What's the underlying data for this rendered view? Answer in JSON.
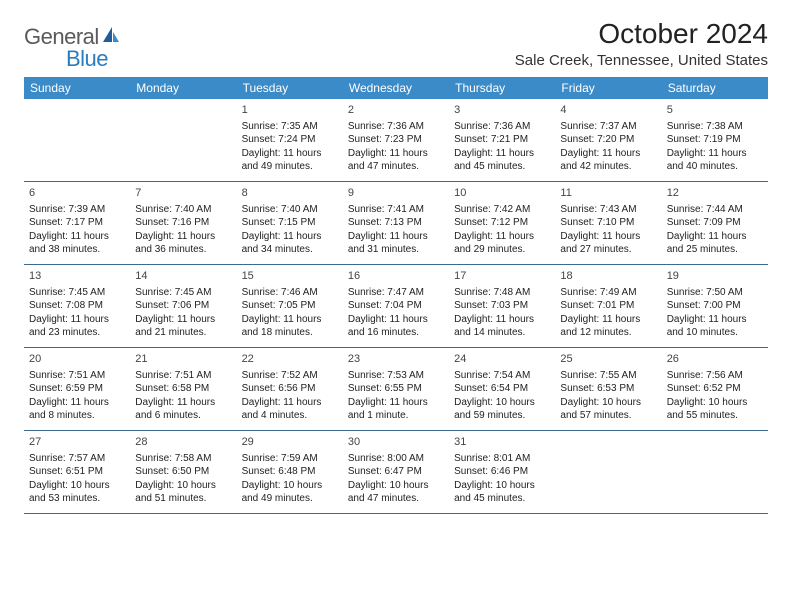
{
  "logo": {
    "part1": "General",
    "part2": "Blue"
  },
  "title": "October 2024",
  "location": "Sale Creek, Tennessee, United States",
  "colors": {
    "header_bg": "#3b8bc8",
    "header_text": "#ffffff",
    "row_divider": "#3b6a8e",
    "logo_gray": "#5a5a5a",
    "logo_blue": "#2b7cc0"
  },
  "days_of_week": [
    "Sunday",
    "Monday",
    "Tuesday",
    "Wednesday",
    "Thursday",
    "Friday",
    "Saturday"
  ],
  "weeks": [
    [
      {
        "n": "",
        "sr": "",
        "ss": "",
        "dl": ""
      },
      {
        "n": "",
        "sr": "",
        "ss": "",
        "dl": ""
      },
      {
        "n": "1",
        "sr": "Sunrise: 7:35 AM",
        "ss": "Sunset: 7:24 PM",
        "dl": "Daylight: 11 hours and 49 minutes."
      },
      {
        "n": "2",
        "sr": "Sunrise: 7:36 AM",
        "ss": "Sunset: 7:23 PM",
        "dl": "Daylight: 11 hours and 47 minutes."
      },
      {
        "n": "3",
        "sr": "Sunrise: 7:36 AM",
        "ss": "Sunset: 7:21 PM",
        "dl": "Daylight: 11 hours and 45 minutes."
      },
      {
        "n": "4",
        "sr": "Sunrise: 7:37 AM",
        "ss": "Sunset: 7:20 PM",
        "dl": "Daylight: 11 hours and 42 minutes."
      },
      {
        "n": "5",
        "sr": "Sunrise: 7:38 AM",
        "ss": "Sunset: 7:19 PM",
        "dl": "Daylight: 11 hours and 40 minutes."
      }
    ],
    [
      {
        "n": "6",
        "sr": "Sunrise: 7:39 AM",
        "ss": "Sunset: 7:17 PM",
        "dl": "Daylight: 11 hours and 38 minutes."
      },
      {
        "n": "7",
        "sr": "Sunrise: 7:40 AM",
        "ss": "Sunset: 7:16 PM",
        "dl": "Daylight: 11 hours and 36 minutes."
      },
      {
        "n": "8",
        "sr": "Sunrise: 7:40 AM",
        "ss": "Sunset: 7:15 PM",
        "dl": "Daylight: 11 hours and 34 minutes."
      },
      {
        "n": "9",
        "sr": "Sunrise: 7:41 AM",
        "ss": "Sunset: 7:13 PM",
        "dl": "Daylight: 11 hours and 31 minutes."
      },
      {
        "n": "10",
        "sr": "Sunrise: 7:42 AM",
        "ss": "Sunset: 7:12 PM",
        "dl": "Daylight: 11 hours and 29 minutes."
      },
      {
        "n": "11",
        "sr": "Sunrise: 7:43 AM",
        "ss": "Sunset: 7:10 PM",
        "dl": "Daylight: 11 hours and 27 minutes."
      },
      {
        "n": "12",
        "sr": "Sunrise: 7:44 AM",
        "ss": "Sunset: 7:09 PM",
        "dl": "Daylight: 11 hours and 25 minutes."
      }
    ],
    [
      {
        "n": "13",
        "sr": "Sunrise: 7:45 AM",
        "ss": "Sunset: 7:08 PM",
        "dl": "Daylight: 11 hours and 23 minutes."
      },
      {
        "n": "14",
        "sr": "Sunrise: 7:45 AM",
        "ss": "Sunset: 7:06 PM",
        "dl": "Daylight: 11 hours and 21 minutes."
      },
      {
        "n": "15",
        "sr": "Sunrise: 7:46 AM",
        "ss": "Sunset: 7:05 PM",
        "dl": "Daylight: 11 hours and 18 minutes."
      },
      {
        "n": "16",
        "sr": "Sunrise: 7:47 AM",
        "ss": "Sunset: 7:04 PM",
        "dl": "Daylight: 11 hours and 16 minutes."
      },
      {
        "n": "17",
        "sr": "Sunrise: 7:48 AM",
        "ss": "Sunset: 7:03 PM",
        "dl": "Daylight: 11 hours and 14 minutes."
      },
      {
        "n": "18",
        "sr": "Sunrise: 7:49 AM",
        "ss": "Sunset: 7:01 PM",
        "dl": "Daylight: 11 hours and 12 minutes."
      },
      {
        "n": "19",
        "sr": "Sunrise: 7:50 AM",
        "ss": "Sunset: 7:00 PM",
        "dl": "Daylight: 11 hours and 10 minutes."
      }
    ],
    [
      {
        "n": "20",
        "sr": "Sunrise: 7:51 AM",
        "ss": "Sunset: 6:59 PM",
        "dl": "Daylight: 11 hours and 8 minutes."
      },
      {
        "n": "21",
        "sr": "Sunrise: 7:51 AM",
        "ss": "Sunset: 6:58 PM",
        "dl": "Daylight: 11 hours and 6 minutes."
      },
      {
        "n": "22",
        "sr": "Sunrise: 7:52 AM",
        "ss": "Sunset: 6:56 PM",
        "dl": "Daylight: 11 hours and 4 minutes."
      },
      {
        "n": "23",
        "sr": "Sunrise: 7:53 AM",
        "ss": "Sunset: 6:55 PM",
        "dl": "Daylight: 11 hours and 1 minute."
      },
      {
        "n": "24",
        "sr": "Sunrise: 7:54 AM",
        "ss": "Sunset: 6:54 PM",
        "dl": "Daylight: 10 hours and 59 minutes."
      },
      {
        "n": "25",
        "sr": "Sunrise: 7:55 AM",
        "ss": "Sunset: 6:53 PM",
        "dl": "Daylight: 10 hours and 57 minutes."
      },
      {
        "n": "26",
        "sr": "Sunrise: 7:56 AM",
        "ss": "Sunset: 6:52 PM",
        "dl": "Daylight: 10 hours and 55 minutes."
      }
    ],
    [
      {
        "n": "27",
        "sr": "Sunrise: 7:57 AM",
        "ss": "Sunset: 6:51 PM",
        "dl": "Daylight: 10 hours and 53 minutes."
      },
      {
        "n": "28",
        "sr": "Sunrise: 7:58 AM",
        "ss": "Sunset: 6:50 PM",
        "dl": "Daylight: 10 hours and 51 minutes."
      },
      {
        "n": "29",
        "sr": "Sunrise: 7:59 AM",
        "ss": "Sunset: 6:48 PM",
        "dl": "Daylight: 10 hours and 49 minutes."
      },
      {
        "n": "30",
        "sr": "Sunrise: 8:00 AM",
        "ss": "Sunset: 6:47 PM",
        "dl": "Daylight: 10 hours and 47 minutes."
      },
      {
        "n": "31",
        "sr": "Sunrise: 8:01 AM",
        "ss": "Sunset: 6:46 PM",
        "dl": "Daylight: 10 hours and 45 minutes."
      },
      {
        "n": "",
        "sr": "",
        "ss": "",
        "dl": ""
      },
      {
        "n": "",
        "sr": "",
        "ss": "",
        "dl": ""
      }
    ]
  ]
}
